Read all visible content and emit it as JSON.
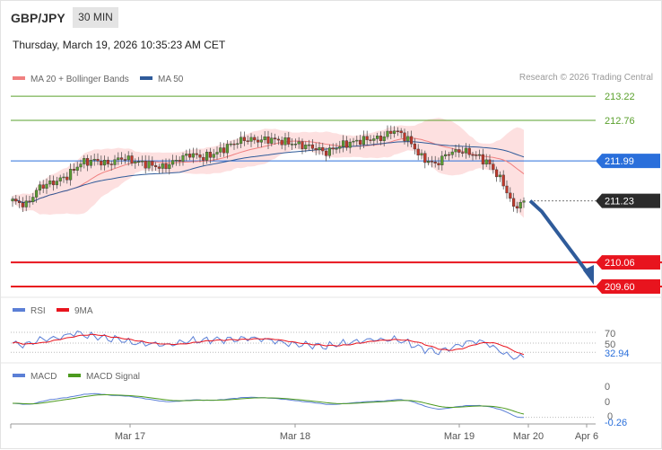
{
  "header": {
    "symbol": "GBP/JPY",
    "timeframe": "30 MIN",
    "datetime": "Thursday, March 19, 2026 10:35:23 AM CET",
    "credit": "Research © 2026 Trading Central"
  },
  "colors": {
    "resistance": "#5aa02c",
    "pivot": "#2a6fdb",
    "support": "#e8141e",
    "ma20": "#f08080",
    "ma50": "#2f5b9a",
    "band_fill": "#fde0e0",
    "candle_up": "#5a9c32",
    "candle_down": "#c0392b",
    "arrow": "#2f5b9a",
    "rsi": "#5b7fd6",
    "macd": "#5b7fd6",
    "macd_signal": "#4c9a1e"
  },
  "chart_data": [
    {
      "type": "candlestick",
      "legend": [
        {
          "name": "MA 20 + Bollinger Bands",
          "color": "#f08080"
        },
        {
          "name": "MA 50",
          "color": "#2f5b9a"
        }
      ],
      "ylim": [
        209.4,
        213.6
      ],
      "x_ticks": [
        "Mar 17",
        "Mar 18",
        "Mar 19",
        "Mar 20",
        "Apr 6"
      ],
      "levels": [
        {
          "value": 213.22,
          "label": "213.22",
          "kind": "resistance"
        },
        {
          "value": 212.76,
          "label": "212.76",
          "kind": "resistance"
        },
        {
          "value": 211.99,
          "label": "211.99",
          "kind": "pivot"
        },
        {
          "value": 211.23,
          "label": "211.23",
          "kind": "last"
        },
        {
          "value": 210.06,
          "label": "210.06",
          "kind": "support"
        },
        {
          "value": 209.6,
          "label": "209.60",
          "kind": "support"
        }
      ],
      "close_keypoints": [
        [
          0,
          211.23
        ],
        [
          4,
          211.15
        ],
        [
          8,
          211.5
        ],
        [
          12,
          211.58
        ],
        [
          16,
          211.7
        ],
        [
          20,
          211.95
        ],
        [
          24,
          212.0
        ],
        [
          28,
          211.93
        ],
        [
          32,
          212.05
        ],
        [
          36,
          211.98
        ],
        [
          40,
          211.92
        ],
        [
          44,
          211.86
        ],
        [
          48,
          212.0
        ],
        [
          52,
          212.12
        ],
        [
          56,
          212.05
        ],
        [
          60,
          212.15
        ],
        [
          64,
          212.3
        ],
        [
          68,
          212.4
        ],
        [
          72,
          212.38
        ],
        [
          76,
          212.4
        ],
        [
          80,
          212.35
        ],
        [
          84,
          212.3
        ],
        [
          88,
          212.25
        ],
        [
          92,
          212.15
        ],
        [
          96,
          212.28
        ],
        [
          100,
          212.35
        ],
        [
          104,
          212.4
        ],
        [
          108,
          212.42
        ],
        [
          112,
          212.58
        ],
        [
          116,
          212.4
        ],
        [
          120,
          212.05
        ],
        [
          124,
          211.92
        ],
        [
          128,
          212.15
        ],
        [
          132,
          212.18
        ],
        [
          136,
          212.1
        ],
        [
          140,
          211.92
        ],
        [
          144,
          211.55
        ],
        [
          147,
          211.1
        ],
        [
          150,
          211.23
        ]
      ],
      "forecast_arrow": {
        "from": 211.23,
        "to": 209.6
      }
    },
    {
      "type": "line",
      "legend": [
        {
          "name": "RSI",
          "color": "#5b7fd6"
        },
        {
          "name": "9MA",
          "color": "#e8141e"
        }
      ],
      "levels": [
        {
          "value": 70,
          "label": "70"
        },
        {
          "value": 50,
          "label": "50"
        }
      ],
      "last_value": {
        "value": 32.94,
        "label": "32.94"
      }
    },
    {
      "type": "line",
      "legend": [
        {
          "name": "MACD",
          "color": "#5b7fd6"
        },
        {
          "name": "MACD Signal",
          "color": "#4c9a1e"
        }
      ],
      "axis_labels": [
        "0",
        "0",
        "0"
      ],
      "last_value": {
        "value": -0.26,
        "label": "-0.26"
      }
    }
  ]
}
